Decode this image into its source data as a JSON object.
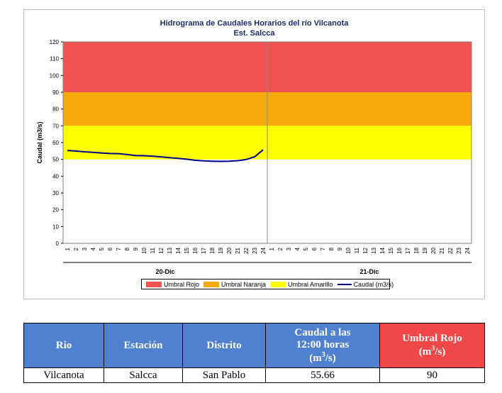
{
  "chart_data": {
    "type": "line",
    "title": "Hidrograma de Caudales Horarios del río Vilcanota",
    "subtitle": "Est. Salcca",
    "ylabel": "Caudal  (m3/s)",
    "ylim": [
      0,
      120
    ],
    "yticks": [
      0,
      10,
      20,
      30,
      40,
      50,
      60,
      70,
      80,
      90,
      100,
      110,
      120
    ],
    "days": [
      "20-Dic",
      "21-Dic"
    ],
    "hours": [
      "1",
      "2",
      "3",
      "4",
      "5",
      "6",
      "7",
      "8",
      "9",
      "10",
      "11",
      "12",
      "13",
      "14",
      "15",
      "16",
      "17",
      "18",
      "19",
      "20",
      "21",
      "22",
      "23",
      "24"
    ],
    "thresholds": [
      {
        "name": "Umbral Rojo",
        "from": 90,
        "to": 120,
        "color": "#f15353"
      },
      {
        "name": "Umbral Naranja",
        "from": 70,
        "to": 90,
        "color": "#f8a90c"
      },
      {
        "name": "Umbral Amarillo",
        "from": 50,
        "to": 70,
        "color": "#ffff00"
      }
    ],
    "series": [
      {
        "name": "Caudal (m3/s)",
        "color": "#00008b",
        "day": "20-Dic",
        "values": [
          55.3,
          55.0,
          54.5,
          54.2,
          53.8,
          53.5,
          53.4,
          52.9,
          52.3,
          52.2,
          51.9,
          51.5,
          51.0,
          50.6,
          50.1,
          49.5,
          49.1,
          48.9,
          48.8,
          48.9,
          49.2,
          49.9,
          51.5,
          55.7
        ]
      }
    ],
    "legend_position": "bottom"
  },
  "legend": {
    "rojo": "Umbral Rojo",
    "naranja": "Umbral Naranja",
    "amarillo": "Umbral Amarillo",
    "caudal": "Caudal (m3/s)"
  },
  "table": {
    "headers": {
      "rio": "Rio",
      "estacion": "Estación",
      "distrito": "Distrito",
      "caudal_line1": "Caudal a las",
      "caudal_line2": "12:00 horas",
      "caudal_unit": "m",
      "umbral_line1": "Umbral Rojo",
      "umbral_unit": "m"
    },
    "row": {
      "rio": "Vilcanota",
      "estacion": "Salcca",
      "distrito": "San Pablo",
      "caudal": "55.66",
      "umbral": "90"
    }
  }
}
